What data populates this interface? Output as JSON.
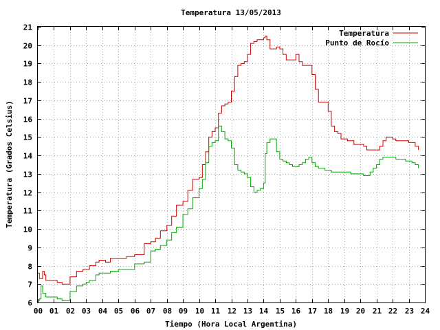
{
  "chart_data": {
    "type": "line",
    "title": "Temperatura 13/05/2013",
    "xlabel": "Tiempo (Hora Local Argentina)",
    "ylabel": "Temperatura (Grados Celsius)",
    "xlim": [
      0,
      24
    ],
    "ylim": [
      6,
      21
    ],
    "x_ticks": [
      "00",
      "01",
      "02",
      "03",
      "04",
      "05",
      "06",
      "07",
      "08",
      "09",
      "10",
      "11",
      "12",
      "13",
      "14",
      "15",
      "16",
      "17",
      "18",
      "19",
      "20",
      "21",
      "22",
      "23",
      "24"
    ],
    "y_ticks": [
      "6",
      "7",
      "8",
      "9",
      "10",
      "11",
      "12",
      "13",
      "14",
      "15",
      "16",
      "17",
      "18",
      "19",
      "20",
      "21"
    ],
    "grid": true,
    "legend_position": "top-right",
    "series": [
      {
        "name": "Temperatura",
        "color": "#cc0000",
        "x": [
          0,
          0.1,
          0.2,
          0.3,
          0.4,
          0.5,
          0.7,
          1.0,
          1.2,
          1.5,
          1.8,
          2.0,
          2.2,
          2.4,
          2.6,
          2.8,
          3.0,
          3.2,
          3.4,
          3.6,
          3.8,
          4.0,
          4.2,
          4.5,
          5.0,
          5.5,
          6.0,
          6.3,
          6.6,
          7.0,
          7.3,
          7.6,
          8.0,
          8.3,
          8.6,
          9.0,
          9.3,
          9.6,
          10.0,
          10.2,
          10.4,
          10.6,
          10.8,
          11.0,
          11.2,
          11.4,
          11.6,
          11.8,
          12.0,
          12.2,
          12.4,
          12.6,
          12.8,
          13.0,
          13.2,
          13.4,
          13.6,
          13.8,
          14.0,
          14.1,
          14.2,
          14.4,
          14.6,
          14.8,
          15.0,
          15.2,
          15.4,
          15.6,
          15.8,
          16.0,
          16.2,
          16.4,
          16.6,
          16.8,
          17.0,
          17.2,
          17.4,
          17.6,
          17.8,
          18.0,
          18.2,
          18.4,
          18.6,
          18.8,
          19.0,
          19.2,
          19.4,
          19.6,
          19.8,
          20.0,
          20.2,
          20.4,
          20.6,
          20.8,
          21.0,
          21.2,
          21.4,
          21.6,
          21.8,
          22.0,
          22.2,
          22.4,
          22.6,
          22.8,
          23.0,
          23.2,
          23.4,
          23.6
        ],
        "values": [
          7.6,
          7.3,
          7.3,
          7.7,
          7.5,
          7.2,
          7.2,
          7.2,
          7.1,
          7.0,
          7.0,
          7.4,
          7.4,
          7.7,
          7.7,
          7.8,
          7.8,
          8.0,
          8.0,
          8.2,
          8.3,
          8.3,
          8.2,
          8.4,
          8.4,
          8.5,
          8.6,
          8.6,
          9.2,
          9.3,
          9.5,
          9.9,
          10.2,
          10.7,
          11.3,
          11.5,
          12.1,
          12.7,
          12.8,
          13.5,
          14.2,
          15.0,
          15.3,
          15.5,
          16.3,
          16.7,
          16.8,
          16.9,
          17.5,
          18.3,
          18.9,
          19.0,
          19.1,
          19.5,
          20.1,
          20.2,
          20.3,
          20.3,
          20.4,
          20.5,
          20.3,
          19.8,
          19.8,
          19.9,
          19.8,
          19.5,
          19.2,
          19.2,
          19.2,
          19.5,
          19.1,
          18.9,
          18.9,
          18.9,
          18.4,
          17.6,
          16.9,
          16.9,
          16.9,
          16.4,
          15.6,
          15.3,
          15.2,
          14.9,
          14.9,
          14.8,
          14.8,
          14.6,
          14.6,
          14.6,
          14.5,
          14.3,
          14.3,
          14.3,
          14.3,
          14.5,
          14.8,
          15.0,
          15.0,
          14.9,
          14.8,
          14.8,
          14.8,
          14.8,
          14.7,
          14.7,
          14.5,
          14.3
        ]
      },
      {
        "name": "Punto de Rocío",
        "color": "#00aa00",
        "x": [
          0,
          0.1,
          0.2,
          0.3,
          0.4,
          0.5,
          0.7,
          1.0,
          1.2,
          1.5,
          1.8,
          2.0,
          2.2,
          2.4,
          2.6,
          2.8,
          3.0,
          3.2,
          3.4,
          3.6,
          3.8,
          4.0,
          4.2,
          4.5,
          5.0,
          5.5,
          6.0,
          6.3,
          6.6,
          7.0,
          7.3,
          7.6,
          8.0,
          8.3,
          8.6,
          9.0,
          9.3,
          9.6,
          10.0,
          10.2,
          10.4,
          10.6,
          10.8,
          11.0,
          11.2,
          11.4,
          11.6,
          11.8,
          12.0,
          12.2,
          12.4,
          12.6,
          12.8,
          13.0,
          13.2,
          13.4,
          13.6,
          13.8,
          14.0,
          14.1,
          14.2,
          14.4,
          14.6,
          14.8,
          15.0,
          15.2,
          15.4,
          15.6,
          15.8,
          16.0,
          16.2,
          16.4,
          16.6,
          16.8,
          17.0,
          17.2,
          17.4,
          17.6,
          17.8,
          18.0,
          18.2,
          18.4,
          18.6,
          18.8,
          19.0,
          19.2,
          19.4,
          19.6,
          19.8,
          20.0,
          20.2,
          20.4,
          20.6,
          20.8,
          21.0,
          21.2,
          21.4,
          21.6,
          21.8,
          22.0,
          22.2,
          22.4,
          22.6,
          22.8,
          23.0,
          23.2,
          23.4,
          23.6
        ],
        "values": [
          6.1,
          6.2,
          6.9,
          6.5,
          6.5,
          6.3,
          6.3,
          6.3,
          6.2,
          6.1,
          6.1,
          6.6,
          6.6,
          6.9,
          6.9,
          7.0,
          7.1,
          7.2,
          7.2,
          7.5,
          7.6,
          7.6,
          7.6,
          7.7,
          7.8,
          7.8,
          8.1,
          8.1,
          8.2,
          8.8,
          8.9,
          9.1,
          9.4,
          9.8,
          10.1,
          10.8,
          11.1,
          11.7,
          12.2,
          12.7,
          13.6,
          14.5,
          14.7,
          14.8,
          15.6,
          15.3,
          14.9,
          14.8,
          14.4,
          13.5,
          13.2,
          13.1,
          13.0,
          12.8,
          12.3,
          12.0,
          12.1,
          12.2,
          12.5,
          14.1,
          14.7,
          14.9,
          14.9,
          14.2,
          13.8,
          13.7,
          13.6,
          13.5,
          13.4,
          13.4,
          13.5,
          13.6,
          13.8,
          13.9,
          13.6,
          13.4,
          13.3,
          13.3,
          13.2,
          13.2,
          13.1,
          13.1,
          13.1,
          13.1,
          13.1,
          13.1,
          13.0,
          13.0,
          13.0,
          13.0,
          12.9,
          12.9,
          13.1,
          13.3,
          13.5,
          13.8,
          13.9,
          13.9,
          13.9,
          13.9,
          13.8,
          13.8,
          13.8,
          13.7,
          13.7,
          13.6,
          13.5,
          13.3
        ]
      }
    ]
  }
}
